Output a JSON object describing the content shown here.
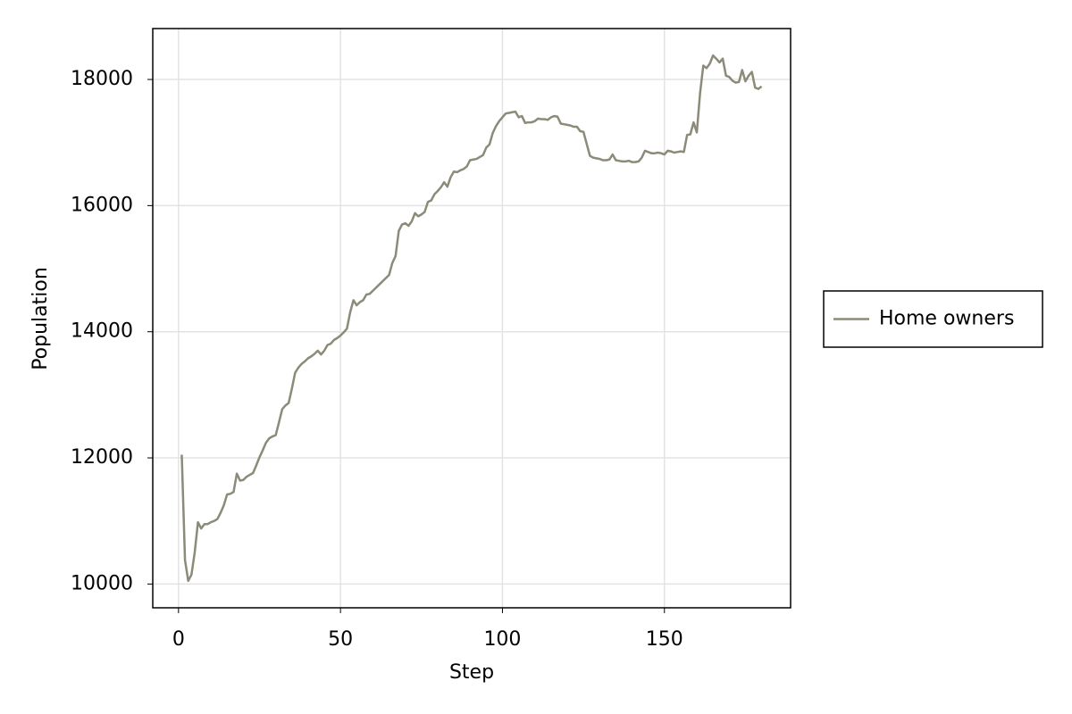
{
  "chart_data": {
    "type": "line",
    "xlabel": "Step",
    "ylabel": "Population",
    "x": [
      1,
      2,
      3,
      4,
      5,
      6,
      7,
      8,
      9,
      10,
      11,
      12,
      13,
      14,
      15,
      16,
      17,
      18,
      19,
      20,
      21,
      22,
      23,
      24,
      25,
      26,
      27,
      28,
      29,
      30,
      31,
      32,
      33,
      34,
      35,
      36,
      37,
      38,
      39,
      40,
      41,
      42,
      43,
      44,
      45,
      46,
      47,
      48,
      49,
      50,
      51,
      52,
      53,
      54,
      55,
      56,
      57,
      58,
      59,
      60,
      61,
      62,
      63,
      64,
      65,
      66,
      67,
      68,
      69,
      70,
      71,
      72,
      73,
      74,
      75,
      76,
      77,
      78,
      79,
      80,
      81,
      82,
      83,
      84,
      85,
      86,
      87,
      88,
      89,
      90,
      91,
      92,
      93,
      94,
      95,
      96,
      97,
      98,
      99,
      100,
      101,
      102,
      103,
      104,
      105,
      106,
      107,
      108,
      109,
      110,
      111,
      112,
      113,
      114,
      115,
      116,
      117,
      118,
      119,
      120,
      121,
      122,
      123,
      124,
      125,
      126,
      127,
      128,
      129,
      130,
      131,
      132,
      133,
      134,
      135,
      136,
      137,
      138,
      139,
      140,
      141,
      142,
      143,
      144,
      145,
      146,
      147,
      148,
      149,
      150,
      151,
      152,
      153,
      154,
      155,
      156,
      157,
      158,
      159,
      160,
      161,
      162,
      163,
      164,
      165,
      166,
      167,
      168,
      169,
      170,
      171,
      172,
      173,
      174,
      175,
      176,
      177,
      178,
      179,
      180
    ],
    "series": [
      {
        "name": "Home owners",
        "color": "#8c8a78",
        "values": [
          12050,
          10380,
          10050,
          10150,
          10500,
          10980,
          10880,
          10950,
          10950,
          10980,
          11000,
          11030,
          11130,
          11250,
          11420,
          11430,
          11460,
          11750,
          11640,
          11650,
          11700,
          11730,
          11760,
          11880,
          12010,
          12120,
          12240,
          12310,
          12340,
          12360,
          12560,
          12770,
          12830,
          12870,
          13100,
          13350,
          13430,
          13490,
          13530,
          13580,
          13610,
          13650,
          13700,
          13640,
          13700,
          13790,
          13810,
          13870,
          13900,
          13940,
          13990,
          14050,
          14310,
          14500,
          14420,
          14470,
          14500,
          14590,
          14600,
          14650,
          14700,
          14750,
          14800,
          14850,
          14900,
          15090,
          15200,
          15600,
          15700,
          15720,
          15680,
          15750,
          15880,
          15830,
          15860,
          15900,
          16060,
          16080,
          16180,
          16230,
          16290,
          16370,
          16300,
          16450,
          16540,
          16530,
          16560,
          16580,
          16620,
          16720,
          16730,
          16740,
          16770,
          16800,
          16920,
          16970,
          17150,
          17260,
          17340,
          17400,
          17460,
          17470,
          17480,
          17490,
          17400,
          17420,
          17310,
          17320,
          17320,
          17340,
          17380,
          17370,
          17370,
          17360,
          17400,
          17420,
          17410,
          17300,
          17290,
          17280,
          17270,
          17250,
          17250,
          17180,
          17170,
          16980,
          16790,
          16760,
          16750,
          16740,
          16720,
          16720,
          16730,
          16810,
          16720,
          16710,
          16700,
          16700,
          16710,
          16690,
          16690,
          16700,
          16760,
          16870,
          16850,
          16830,
          16830,
          16840,
          16830,
          16810,
          16870,
          16860,
          16840,
          16850,
          16860,
          16850,
          17120,
          17130,
          17320,
          17160,
          17780,
          18220,
          18180,
          18250,
          18380,
          18330,
          18270,
          18330,
          18060,
          18040,
          17980,
          17950,
          17960,
          18150,
          17970,
          18060,
          18120,
          17870,
          17850,
          17890
        ]
      }
    ],
    "xlim": [
      -7.95,
      188.95
    ],
    "xticks": [
      0,
      50,
      100,
      150
    ],
    "ylim": [
      9623,
      18807
    ],
    "yticks": [
      10000,
      12000,
      14000,
      16000,
      18000
    ],
    "grid": true,
    "legend": "right"
  }
}
